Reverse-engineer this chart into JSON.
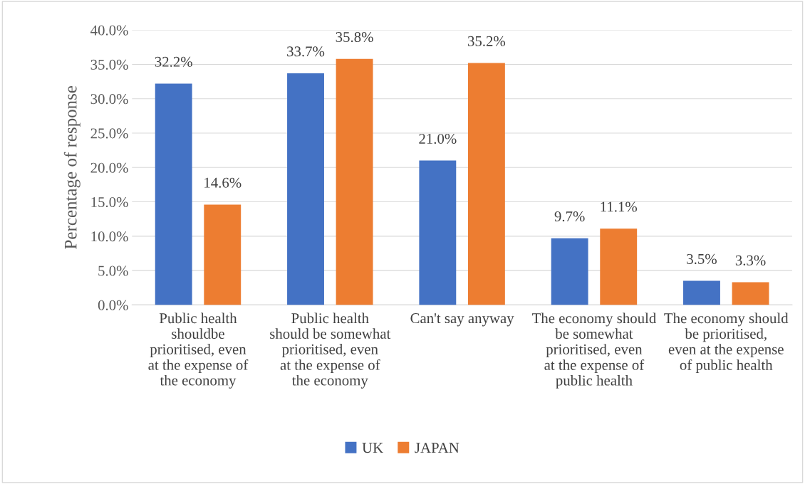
{
  "chart_data": {
    "type": "bar",
    "ylabel": "Percentage of response",
    "categories": [
      "Public health shouldbe prioritised, even at the expense of the economy",
      "Public health should be somewhat prioritised, even at the expense of the economy",
      "Can't say anyway",
      "The economy should be somewhat prioritised, even at the expense of public health",
      "The economy should be prioritised, even at the expense of public health"
    ],
    "series": [
      {
        "name": "UK",
        "color": "#4472c4",
        "values": [
          32.2,
          33.7,
          21.0,
          9.7,
          3.5
        ],
        "value_labels": [
          "32.2%",
          "33.7%",
          "21.0%",
          "9.7%",
          "3.5%"
        ]
      },
      {
        "name": "JAPAN",
        "color": "#ed7d31",
        "values": [
          14.6,
          35.8,
          35.2,
          11.1,
          3.3
        ],
        "value_labels": [
          "14.6%",
          "35.8%",
          "35.2%",
          "11.1%",
          "3.3%"
        ]
      }
    ],
    "ylim": [
      0,
      40
    ],
    "yticks": [
      {
        "value": 0,
        "label": "0.0%"
      },
      {
        "value": 5,
        "label": "5.0%"
      },
      {
        "value": 10,
        "label": "10.0%"
      },
      {
        "value": 15,
        "label": "15.0%"
      },
      {
        "value": 20,
        "label": "20.0%"
      },
      {
        "value": 25,
        "label": "25.0%"
      },
      {
        "value": 30,
        "label": "30.0%"
      },
      {
        "value": 35,
        "label": "35.0%"
      },
      {
        "value": 40,
        "label": "40.0%"
      }
    ],
    "grid": "y",
    "legend": "bottom"
  }
}
